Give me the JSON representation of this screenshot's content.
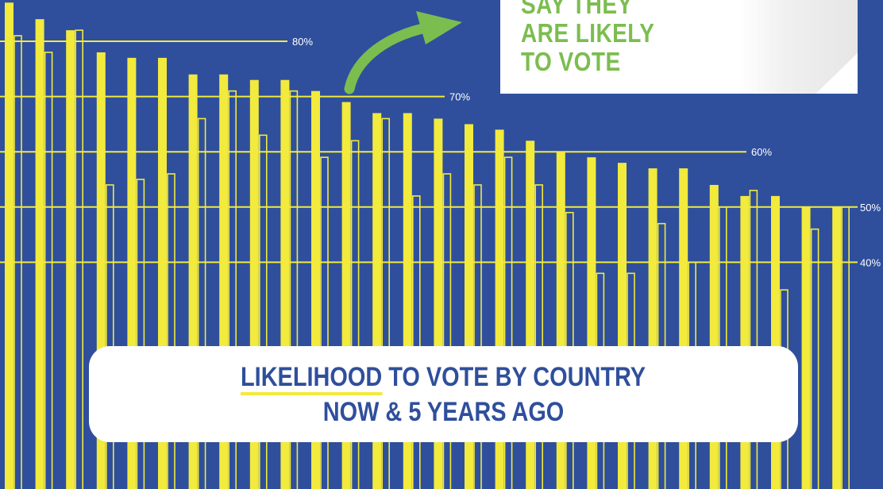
{
  "chart_data": {
    "type": "bar",
    "title": "LIKELIHOOD TO VOTE BY COUNTRY",
    "subtitle": "NOW & 5 YEARS AGO",
    "title_highlight": "LIKELIHOOD",
    "title_rest": " TO VOTE BY COUNTRY",
    "xlabel": "",
    "ylabel": "",
    "ylim": [
      0,
      87
    ],
    "grid_lines": [
      {
        "value": 80,
        "label": "80%"
      },
      {
        "value": 70,
        "label": "70%"
      },
      {
        "value": 60,
        "label": "60%"
      },
      {
        "value": 50,
        "label": "50%"
      },
      {
        "value": 40,
        "label": "40%"
      }
    ],
    "series": [
      {
        "values": [
          87,
          84,
          82,
          78,
          77,
          77,
          74,
          74,
          73,
          73,
          71,
          69,
          67,
          67,
          66,
          65,
          64,
          62,
          60,
          59,
          58,
          57,
          57,
          54,
          52,
          52,
          50,
          50
        ]
      },
      {
        "values": [
          81,
          78,
          82,
          54,
          55,
          56,
          66,
          71,
          63,
          71,
          59,
          62,
          66,
          52,
          56,
          54,
          59,
          54,
          49,
          38,
          38,
          47,
          40,
          50,
          53,
          35,
          46,
          50
        ]
      }
    ],
    "colors": {
      "now": "#f2ea3c",
      "past_outline": "#f2ea3c",
      "background": "#2f4f9c",
      "callout_text": "#7cbd4f",
      "arrow": "#7cbd4f"
    }
  },
  "callout": {
    "lines": [
      "SAY THEY",
      "ARE LIKELY",
      "TO VOTE"
    ]
  }
}
